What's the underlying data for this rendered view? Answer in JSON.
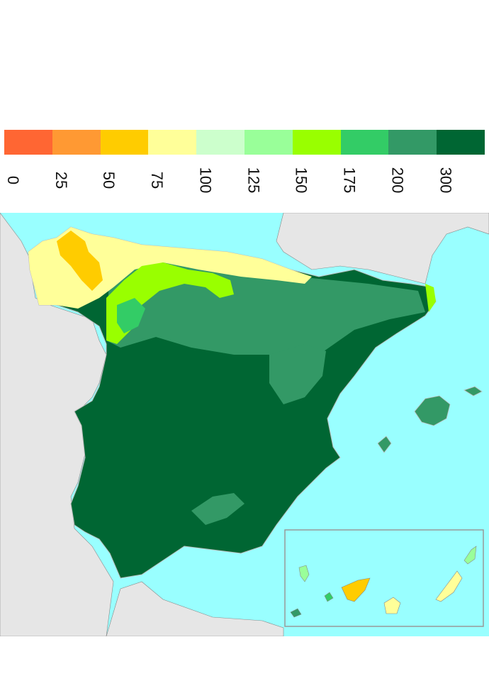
{
  "legend": {
    "colors": [
      "#ff6633",
      "#ff9933",
      "#ffcc00",
      "#ffff99",
      "#ccffcc",
      "#99ff99",
      "#99ff00",
      "#33cc66",
      "#339966",
      "#006633"
    ],
    "labels": [
      "0",
      "25",
      "50",
      "75",
      "100",
      "125",
      "150",
      "175",
      "200",
      "300"
    ]
  },
  "map": {
    "sea_color": "#99ffff",
    "land_color": "#e6e6e6",
    "inset_border_color": "#999999"
  }
}
